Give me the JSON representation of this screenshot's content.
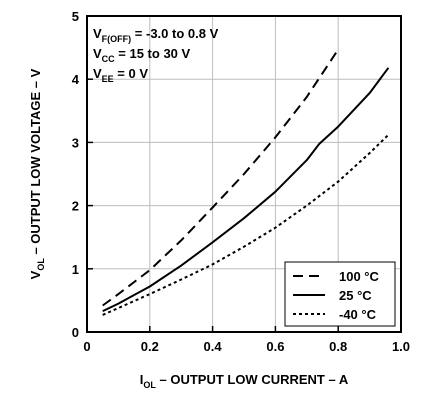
{
  "chart_data": {
    "type": "line",
    "xlabel": {
      "main": "I",
      "sub": "OL",
      "rest": " – OUTPUT LOW CURRENT – A"
    },
    "ylabel": {
      "main": "V",
      "sub": "OL",
      "rest": " – OUTPUT LOW VOLTAGE – V"
    },
    "xlim": [
      0,
      1.0
    ],
    "ylim": [
      0,
      5
    ],
    "xticks": [
      "0",
      "0.2",
      "0.4",
      "0.6",
      "0.8",
      "1.0"
    ],
    "yticks": [
      "0",
      "1",
      "2",
      "3",
      "4",
      "5"
    ],
    "grid": true,
    "annotations": [
      {
        "main": "V",
        "sub": "F(OFF)",
        "rest": " = -3.0 to 0.8 V"
      },
      {
        "main": "V",
        "sub": "CC",
        "rest": " = 15 to 30 V"
      },
      {
        "main": "V",
        "sub": "EE",
        "rest": " = 0 V"
      }
    ],
    "legend_position": "bottom-right",
    "series": [
      {
        "name": "100 °C",
        "style": "dashed",
        "x": [
          0.05,
          0.1,
          0.2,
          0.3,
          0.4,
          0.5,
          0.6,
          0.7,
          0.8
        ],
        "y": [
          0.42,
          0.6,
          0.98,
          1.45,
          1.97,
          2.5,
          3.08,
          3.72,
          4.47
        ]
      },
      {
        "name": "25 °C",
        "style": "solid",
        "x": [
          0.05,
          0.1,
          0.2,
          0.3,
          0.4,
          0.5,
          0.6,
          0.7,
          0.74,
          0.8,
          0.9,
          0.96
        ],
        "y": [
          0.33,
          0.45,
          0.72,
          1.05,
          1.42,
          1.8,
          2.22,
          2.72,
          2.98,
          3.25,
          3.78,
          4.18
        ]
      },
      {
        "name": "-40 °C",
        "style": "dotted",
        "x": [
          0.05,
          0.1,
          0.2,
          0.3,
          0.4,
          0.5,
          0.6,
          0.7,
          0.8,
          0.9,
          0.96
        ],
        "y": [
          0.27,
          0.38,
          0.6,
          0.83,
          1.07,
          1.35,
          1.65,
          2.0,
          2.38,
          2.83,
          3.12
        ]
      }
    ]
  }
}
